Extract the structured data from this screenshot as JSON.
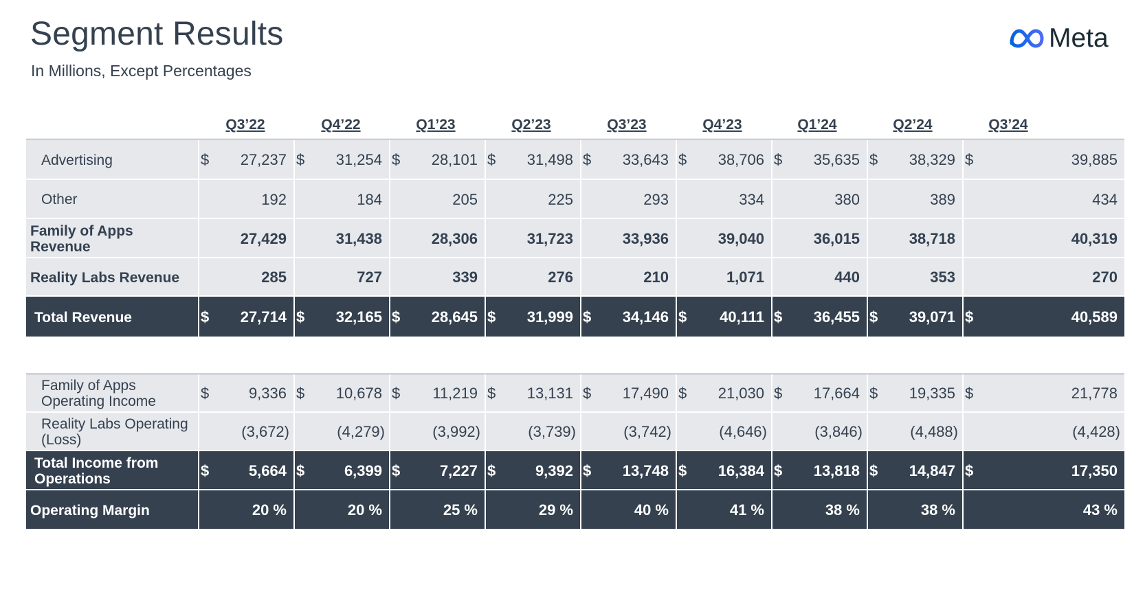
{
  "header": {
    "title": "Segment Results",
    "subtitle": "In Millions, Except Percentages",
    "logo_text": "Meta",
    "logo_icon": "meta-infinity-icon"
  },
  "quarters": [
    "Q3’22",
    "Q4’22",
    "Q1’23",
    "Q2’23",
    "Q3’23",
    "Q4’23",
    "Q1’24",
    "Q2’24",
    "Q3’24"
  ],
  "revenue_table": [
    {
      "label": "Advertising",
      "show_dollar": true,
      "bold": false,
      "dark": false,
      "values": [
        "27,237",
        "31,254",
        "28,101",
        "31,498",
        "33,643",
        "38,706",
        "35,635",
        "38,329",
        "39,885"
      ]
    },
    {
      "label": "Other",
      "show_dollar": false,
      "bold": false,
      "dark": false,
      "values": [
        "192",
        "184",
        "205",
        "225",
        "293",
        "334",
        "380",
        "389",
        "434"
      ]
    },
    {
      "label": "Family of Apps Revenue",
      "show_dollar": false,
      "bold": true,
      "dark": false,
      "values": [
        "27,429",
        "31,438",
        "28,306",
        "31,723",
        "33,936",
        "39,040",
        "36,015",
        "38,718",
        "40,319"
      ]
    },
    {
      "label": "Reality Labs Revenue",
      "show_dollar": false,
      "bold": true,
      "dark": false,
      "values": [
        "285",
        "727",
        "339",
        "276",
        "210",
        "1,071",
        "440",
        "353",
        "270"
      ]
    },
    {
      "label": "Total Revenue",
      "show_dollar": true,
      "bold": true,
      "dark": true,
      "values": [
        "27,714",
        "32,165",
        "28,645",
        "31,999",
        "34,146",
        "40,111",
        "36,455",
        "39,071",
        "40,589"
      ]
    }
  ],
  "income_table": [
    {
      "label": "Family of Apps Operating Income",
      "show_dollar": true,
      "bold": false,
      "dark": false,
      "values": [
        "9,336",
        "10,678",
        "11,219",
        "13,131",
        "17,490",
        "21,030",
        "17,664",
        "19,335",
        "21,778"
      ]
    },
    {
      "label": "Reality Labs Operating (Loss)",
      "show_dollar": false,
      "bold": false,
      "dark": false,
      "values": [
        "(3,672)",
        "(4,279)",
        "(3,992)",
        "(3,739)",
        "(3,742)",
        "(4,646)",
        "(3,846)",
        "(4,488)",
        "(4,428)"
      ]
    },
    {
      "label": "Total Income from Operations",
      "show_dollar": true,
      "bold": true,
      "dark": true,
      "values": [
        "5,664",
        "6,399",
        "7,227",
        "9,392",
        "13,748",
        "16,384",
        "13,818",
        "14,847",
        "17,350"
      ]
    },
    {
      "label": "Operating Margin",
      "show_dollar": false,
      "bold": true,
      "dark": true,
      "values": [
        "20 %",
        "20 %",
        "25 %",
        "29 %",
        "40 %",
        "41 %",
        "38 %",
        "38 %",
        "43 %"
      ]
    }
  ],
  "currency_symbol": "$",
  "colors": {
    "dark_row": "#35414f",
    "light_row": "#e6e8ec",
    "text": "#35414f",
    "logo_blue": "#0668e1"
  }
}
